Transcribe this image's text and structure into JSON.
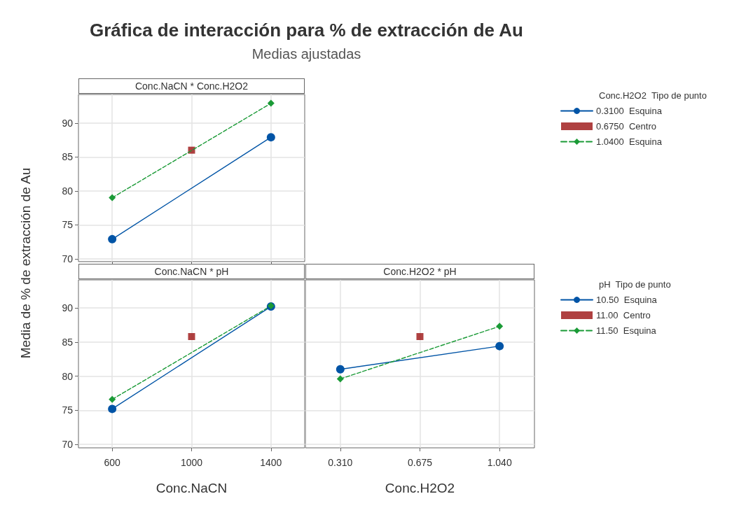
{
  "chart_data": [
    {
      "type": "line",
      "title": "Conc.NaCN * Conc.H2O2",
      "annotations": [
        "Gráfica de interacción para % de extracción de Au",
        "Medias ajustadas"
      ],
      "ylabel": "Media de % de extracción de Au",
      "legend_title": "Conc.H2O2  Tipo de punto",
      "legend": "right",
      "grid": true,
      "tick_labels": "y",
      "xlim": [
        430,
        1570
      ],
      "xticks": [
        600,
        1000,
        1400
      ],
      "ylim": [
        69.6,
        94.2
      ],
      "yticks": [
        70,
        75,
        80,
        85,
        90
      ],
      "series": [
        {
          "name": "0.3100  Esquina",
          "color": "#0054a6",
          "marker": "circle",
          "line_style": "solid",
          "x": [
            600,
            1400
          ],
          "values": [
            72.9,
            87.9
          ]
        },
        {
          "name": "0.6750  Centro",
          "color": "#9b1111",
          "type": "scatter",
          "marker": "square",
          "x": [
            1000
          ],
          "values": [
            86.0
          ]
        },
        {
          "name": "1.0400  Esquina",
          "color": "#1a9a36",
          "marker": "diamond",
          "line_style": "dashed",
          "x": [
            600,
            1400
          ],
          "values": [
            79.0,
            92.9
          ]
        }
      ]
    },
    {
      "type": "line",
      "title": "Conc.NaCN * pH",
      "xlabel": "Conc.NaCN",
      "grid": true,
      "xlim": [
        430,
        1570
      ],
      "xticks": [
        600,
        1000,
        1400
      ],
      "ylim": [
        69.5,
        94.1
      ],
      "yticks": [
        70,
        75,
        80,
        85,
        90
      ],
      "series": [
        {
          "color": "#0054a6",
          "marker": "circle",
          "line_style": "solid",
          "x": [
            600,
            1400
          ],
          "values": [
            75.2,
            90.2
          ]
        },
        {
          "color": "#9b1111",
          "type": "scatter",
          "marker": "square",
          "x": [
            1000
          ],
          "values": [
            85.8
          ]
        },
        {
          "color": "#1a9a36",
          "marker": "diamond",
          "line_style": "dashed",
          "x": [
            600,
            1400
          ],
          "values": [
            76.6,
            90.3
          ]
        }
      ]
    },
    {
      "type": "line",
      "title": "Conc.H2O2 * pH",
      "xlabel": "Conc.H2O2",
      "legend_title": "pH  Tipo de punto",
      "legend": "right",
      "grid": true,
      "tick_labels": "x",
      "xlim": [
        0.15,
        1.2
      ],
      "xticks": [
        {
          "value": 0.31,
          "label": "0.310"
        },
        {
          "value": 0.675,
          "label": "0.675"
        },
        {
          "value": 1.04,
          "label": "1.040"
        }
      ],
      "ylim": [
        69.5,
        94.1
      ],
      "yticks": [
        70,
        75,
        80,
        85,
        90
      ],
      "series": [
        {
          "name": "10.50  Esquina",
          "color": "#0054a6",
          "marker": "circle",
          "line_style": "solid",
          "x": [
            0.31,
            1.04
          ],
          "values": [
            81.0,
            84.4
          ]
        },
        {
          "name": "11.00  Centro",
          "color": "#9b1111",
          "type": "scatter",
          "marker": "square",
          "x": [
            0.675
          ],
          "values": [
            85.8
          ]
        },
        {
          "name": "11.50  Esquina",
          "color": "#1a9a36",
          "marker": "diamond",
          "line_style": "dashed",
          "x": [
            0.31,
            1.04
          ],
          "values": [
            79.6,
            87.3
          ]
        }
      ]
    }
  ]
}
